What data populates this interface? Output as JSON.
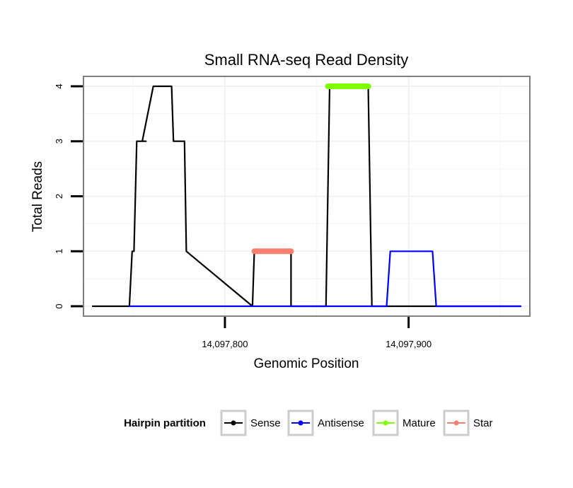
{
  "chart_data": {
    "type": "line",
    "title": "Small RNA-seq Read Density",
    "xlabel": "Genomic Position",
    "ylabel": "Total Reads",
    "xlim": [
      14097723,
      14097966
    ],
    "ylim": [
      -0.18,
      4.18
    ],
    "x_ticks": [
      {
        "value": 14097800,
        "label": "14,097,800"
      },
      {
        "value": 14097900,
        "label": "14,097,900"
      }
    ],
    "y_ticks": [
      {
        "value": 0,
        "label": "0"
      },
      {
        "value": 1,
        "label": "1"
      },
      {
        "value": 2,
        "label": "2"
      },
      {
        "value": 3,
        "label": "3"
      },
      {
        "value": 4,
        "label": "4"
      }
    ],
    "grid": true,
    "series": [
      {
        "name": "Sense",
        "color": "#000000",
        "x": [
          14097728,
          14097748,
          14097749.5,
          14097750.5,
          14097752,
          14097756,
          14097757,
          14097755,
          14097761,
          14097764,
          14097765.5,
          14097764,
          14097770,
          14097771,
          14097772,
          14097772,
          14097774,
          14097778,
          14097779,
          14097779,
          14097815,
          14097816,
          14097817,
          14097835,
          14097836,
          14097836,
          14097855,
          14097857,
          14097857,
          14097877,
          14097878,
          14097880,
          14097961
        ],
        "y": [
          0,
          0,
          1,
          1,
          3,
          3,
          3,
          3,
          4,
          4,
          4,
          4,
          4,
          4,
          3,
          3,
          3,
          3,
          1,
          1,
          0,
          1,
          1,
          1,
          1,
          0,
          0,
          4,
          4,
          4,
          4,
          0,
          0
        ]
      },
      {
        "name": "Antisense",
        "color": "#0000ff",
        "x": [
          14097748,
          14097888,
          14097890,
          14097913,
          14097915,
          14097961
        ],
        "y": [
          0,
          0,
          1,
          1,
          0,
          0
        ]
      },
      {
        "name": "Mature",
        "color": "#7fff00",
        "x": [
          14097856,
          14097878
        ],
        "y": [
          4,
          4
        ]
      },
      {
        "name": "Star",
        "color": "#fa8072",
        "x": [
          14097816,
          14097836
        ],
        "y": [
          1,
          1
        ]
      }
    ],
    "legend": {
      "title": "Hairpin partition",
      "position": "bottom",
      "entries": [
        {
          "label": "Sense",
          "color": "#000000"
        },
        {
          "label": "Antisense",
          "color": "#0000ff"
        },
        {
          "label": "Mature",
          "color": "#7fff00"
        },
        {
          "label": "Star",
          "color": "#fa8072"
        }
      ]
    }
  }
}
